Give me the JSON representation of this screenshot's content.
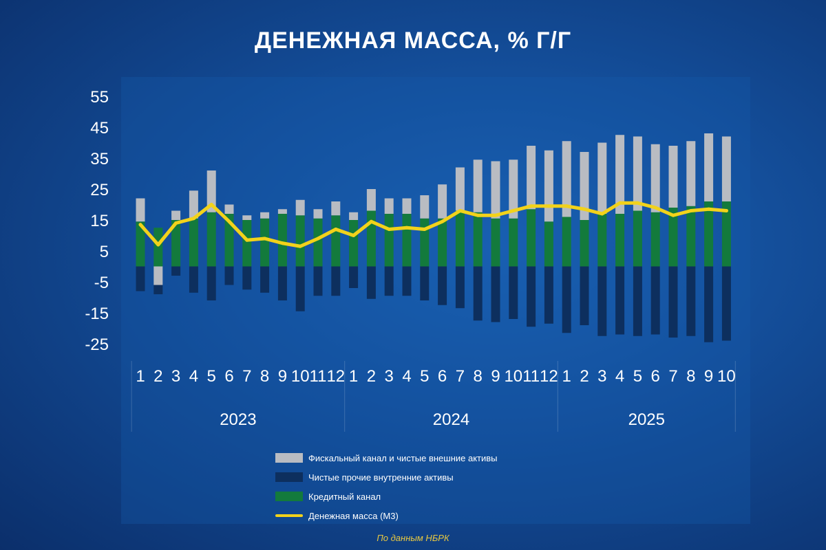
{
  "title": "ДЕНЕЖНАЯ МАССА, % Г/Г",
  "source": "По данным НБРК",
  "colors": {
    "fiscal": "#b9bcc2",
    "other": "#0d2f5e",
    "credit": "#137a3c",
    "m3": "#f2d21b",
    "text": "#ffffff"
  },
  "chart_data": {
    "type": "bar",
    "stacked": true,
    "title": "ДЕНЕЖНАЯ МАССА, % Г/Г",
    "ylim": [
      -25,
      55
    ],
    "yticks": [
      "55",
      "45",
      "35",
      "25",
      "15",
      "5",
      "-5",
      "-15",
      "-25"
    ],
    "categories": [
      "1",
      "2",
      "3",
      "4",
      "5",
      "6",
      "7",
      "8",
      "9",
      "10",
      "11",
      "12",
      "1",
      "2",
      "3",
      "4",
      "5",
      "6",
      "7",
      "8",
      "9",
      "10",
      "11",
      "12",
      "1",
      "2",
      "3",
      "4",
      "5",
      "6",
      "7",
      "8",
      "9",
      "10"
    ],
    "year_groups": [
      {
        "label": "2023",
        "start": 0,
        "end": 11
      },
      {
        "label": "2024",
        "start": 12,
        "end": 23
      },
      {
        "label": "2025",
        "start": 24,
        "end": 33
      }
    ],
    "series": [
      {
        "name": "Фискальный канал и чистые внешние активы",
        "kind": "bar",
        "values": [
          7.5,
          -6.0,
          3.0,
          9.0,
          13.5,
          3.0,
          1.5,
          2.0,
          1.5,
          5.0,
          3.0,
          4.5,
          2.5,
          7.0,
          5.0,
          5.0,
          7.5,
          11.0,
          14.0,
          17.0,
          18.5,
          19.0,
          20.5,
          23.0,
          24.5,
          22.0,
          23.0,
          25.5,
          24.0,
          22.0,
          20.0,
          21.0,
          22.0,
          21.0
        ]
      },
      {
        "name": "Чистые прочие внутренние активы",
        "kind": "bar",
        "values": [
          -8.0,
          -3.0,
          -3.0,
          -8.5,
          -11.0,
          -6.0,
          -7.5,
          -8.5,
          -11.0,
          -14.5,
          -9.5,
          -9.5,
          -7.0,
          -10.5,
          -9.5,
          -9.5,
          -11.0,
          -12.5,
          -13.5,
          -17.5,
          -18.0,
          -17.0,
          -19.5,
          -18.5,
          -21.5,
          -19.0,
          -22.5,
          -22.0,
          -22.5,
          -22.0,
          -23.0,
          -22.5,
          -24.5,
          -24.0
        ]
      },
      {
        "name": "Кредитный канал",
        "kind": "bar",
        "values": [
          14.5,
          12.5,
          15.0,
          15.5,
          17.5,
          17.0,
          15.0,
          15.5,
          17.0,
          16.5,
          15.5,
          16.5,
          15.0,
          18.0,
          17.0,
          17.0,
          15.5,
          15.5,
          18.0,
          17.5,
          15.5,
          15.5,
          18.5,
          14.5,
          16.0,
          15.0,
          17.0,
          17.0,
          18.0,
          17.5,
          19.0,
          19.5,
          21.0,
          21.0
        ]
      },
      {
        "name": "Денежная масса (М3)",
        "kind": "line",
        "values": [
          13.5,
          7.0,
          14.0,
          15.5,
          20.0,
          14.5,
          8.5,
          9.0,
          7.5,
          6.5,
          9.0,
          12.0,
          10.0,
          14.5,
          12.0,
          12.5,
          12.0,
          14.5,
          18.0,
          16.5,
          16.5,
          18.0,
          19.5,
          19.5,
          19.5,
          18.5,
          17.0,
          20.5,
          20.5,
          19.0,
          16.5,
          18.0,
          18.5,
          18.0
        ]
      }
    ]
  }
}
